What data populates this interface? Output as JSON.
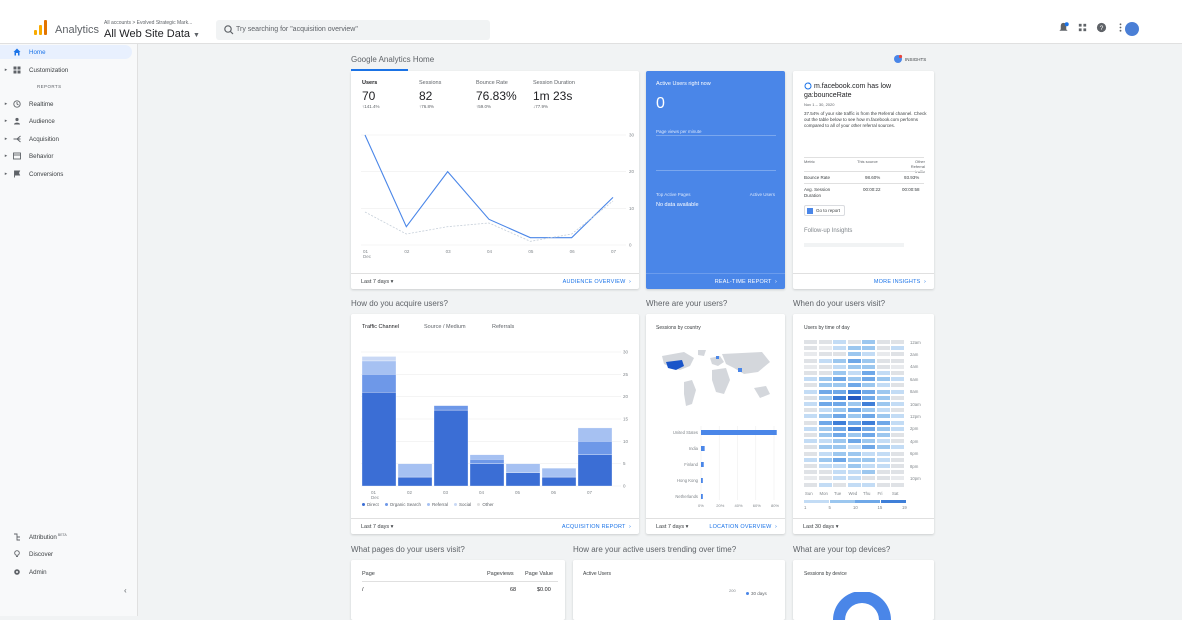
{
  "header": {
    "app_name": "Analytics",
    "breadcrumb": "All accounts > Evolved Strategic Mark...",
    "property": "All Web Site Data",
    "search_placeholder": "Try searching for \"acquisition overview\""
  },
  "sidebar": {
    "home": "Home",
    "customization": "Customization",
    "reports_label": "REPORTS",
    "items": [
      "Realtime",
      "Audience",
      "Acquisition",
      "Behavior",
      "Conversions"
    ],
    "bottom": {
      "attribution": "Attribution",
      "attribution_sup": "BETA",
      "discover": "Discover",
      "admin": "Admin"
    }
  },
  "home": {
    "title": "Google Analytics Home",
    "insights_label": "INSIGHTS",
    "metrics": [
      {
        "label": "Users",
        "value": "70",
        "change": "↑141.4%"
      },
      {
        "label": "Sessions",
        "value": "82",
        "change": "↑76.8%"
      },
      {
        "label": "Bounce Rate",
        "value": "76.83%",
        "change": "↑59.0%"
      },
      {
        "label": "Session Duration",
        "value": "1m 23s",
        "change": "↓77.9%"
      }
    ],
    "y_ticks": [
      "30",
      "20",
      "10",
      "0"
    ],
    "x_ticks": [
      "01\nDec",
      "02",
      "03",
      "04",
      "05",
      "06",
      "07"
    ],
    "footer_left": "Last 7 days",
    "footer_right": "AUDIENCE OVERVIEW"
  },
  "users_chart": {
    "chart_data": {
      "type": "line",
      "categories": [
        "01 Dec",
        "02",
        "03",
        "04",
        "05",
        "06",
        "07"
      ],
      "series": [
        {
          "values": [
            30,
            5,
            20,
            7,
            2,
            2,
            13
          ]
        },
        {
          "values": [
            9,
            3,
            5,
            6,
            1,
            3,
            12
          ]
        }
      ],
      "ylim": [
        0,
        30
      ],
      "title": "",
      "xlabel": "",
      "ylabel": ""
    }
  },
  "realtime": {
    "title": "Active Users right now",
    "value": "0",
    "page_views": "Page views per minute",
    "top_pages": "Top Active Pages",
    "active_users": "Active Users",
    "no_data": "No data available",
    "footer": "REAL-TIME REPORT"
  },
  "insight": {
    "headline": "m.facebook.com has low ga:bounceRate",
    "date": "Nov 1 – 30, 2020",
    "body": "37.54% of your site traffic is from the Referral channel. Check out the table below to see how m.facebook.com performs compared to all of your other referral sources.",
    "table_headers": [
      "Metric",
      "This source",
      "Other Referral traffic"
    ],
    "rows": [
      [
        "Bounce Rate",
        "98.60%",
        "93.93%"
      ],
      [
        "Avg. Session Duration",
        "00:00:22",
        "00:00:58"
      ]
    ],
    "goto": "Go to report",
    "follow_up": "Follow-up Insights",
    "footer": "MORE INSIGHTS"
  },
  "acquire": {
    "title": "How do you acquire users?",
    "tabs": [
      "Traffic Channel",
      "Source / Medium",
      "Referrals"
    ],
    "y_ticks": [
      "30",
      "25",
      "20",
      "15",
      "10",
      "5",
      "0"
    ],
    "x_ticks": [
      "01\nDec",
      "02",
      "03",
      "04",
      "05",
      "06",
      "07"
    ],
    "legend": [
      "Direct",
      "Organic Search",
      "Referral",
      "Social",
      "Other"
    ],
    "footer_left": "Last 7 days",
    "footer_right": "ACQUISITION REPORT",
    "chart_data": {
      "type": "bar",
      "categories": [
        "01 Dec",
        "02",
        "03",
        "04",
        "05",
        "06",
        "07"
      ],
      "series": [
        {
          "name": "Direct",
          "values": [
            21,
            2,
            17,
            5,
            3,
            2,
            7
          ]
        },
        {
          "name": "Organic Search",
          "values": [
            4,
            0,
            1,
            1,
            0,
            0,
            3
          ]
        },
        {
          "name": "Referral",
          "values": [
            3,
            3,
            0,
            1,
            2,
            2,
            3
          ]
        },
        {
          "name": "Social",
          "values": [
            1,
            0,
            0,
            0,
            0,
            0,
            0
          ]
        }
      ],
      "ylim": [
        0,
        30
      ],
      "title": "",
      "xlabel": "",
      "ylabel": ""
    }
  },
  "where": {
    "title": "Where are your users?",
    "subtitle": "Sessions by country",
    "countries": [
      "United States",
      "India",
      "Finland",
      "Hong Kong",
      "Netherlands"
    ],
    "x_ticks": [
      "0%",
      "20%",
      "40%",
      "60%",
      "80%"
    ],
    "footer_left": "Last 7 days",
    "footer_right": "LOCATION OVERVIEW",
    "chart_data": {
      "type": "bar",
      "categories": [
        "United States",
        "India",
        "Finland",
        "Hong Kong",
        "Netherlands"
      ],
      "values": [
        83,
        4,
        3,
        2,
        2
      ],
      "ylim": [
        0,
        90
      ],
      "title": "",
      "xlabel": "",
      "ylabel": ""
    }
  },
  "when": {
    "title": "When do your users visit?",
    "subtitle": "Users by time of day",
    "hours": [
      "12am",
      "2am",
      "4am",
      "6am",
      "8am",
      "10am",
      "12pm",
      "2pm",
      "4pm",
      "6pm",
      "8pm",
      "10pm"
    ],
    "days": [
      "Sun",
      "Mon",
      "Tue",
      "Wed",
      "Thu",
      "Fri",
      "Sat"
    ],
    "scale": [
      "1",
      "5",
      "10",
      "15",
      "19"
    ],
    "footer_left": "Last 30 days"
  },
  "pages": {
    "title": "What pages do your users visit?",
    "headers": [
      "Page",
      "Pageviews",
      "Page Value"
    ],
    "row": [
      "/",
      "68",
      "$0.00"
    ]
  },
  "trending": {
    "title": "How are your active users trending over time?",
    "subtitle": "Active Users",
    "legend": "30 days",
    "tick": "200"
  },
  "devices": {
    "title": "What are your top devices?",
    "subtitle": "Sessions by device"
  },
  "colors": {
    "accent": "#1a73e8",
    "realtime_bg": "#4a86e8",
    "line_primary": "#4a86e8",
    "line_secondary": "#c6cfd9",
    "bar_direct": "#3b6ed5",
    "bar_organic": "#6e98e8",
    "bar_referral": "#a6c1f2"
  }
}
